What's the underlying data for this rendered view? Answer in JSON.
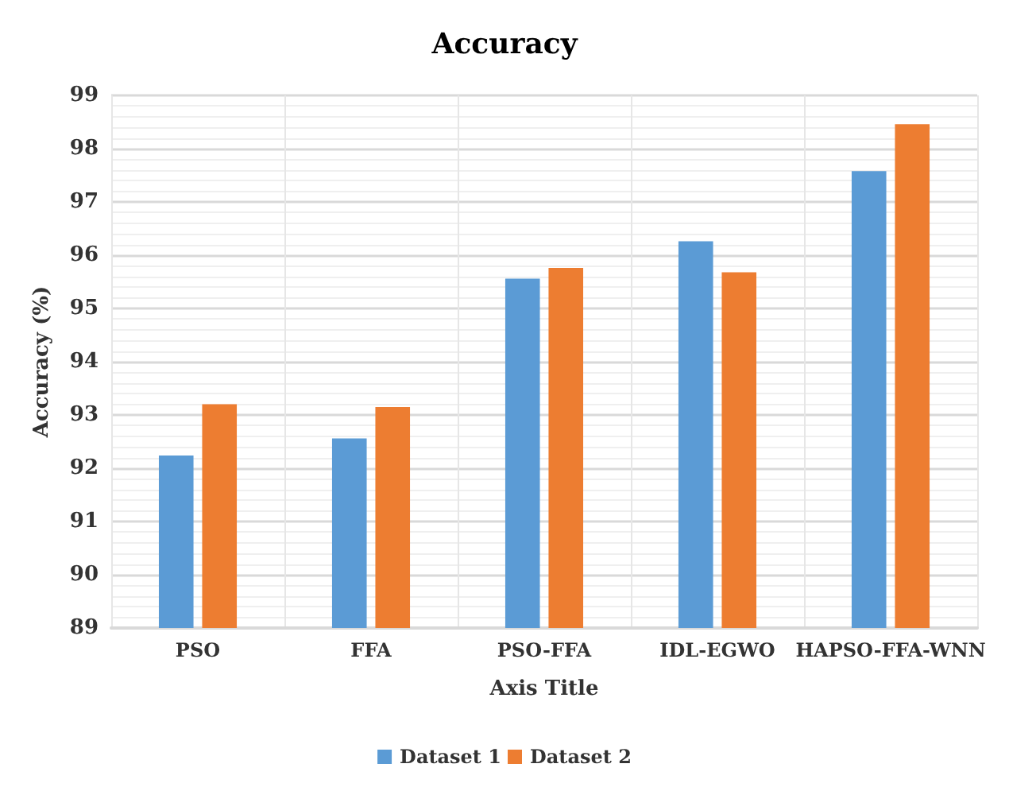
{
  "chart_data": {
    "type": "bar",
    "title": "Accuracy",
    "xlabel": "Axis Title",
    "ylabel": "Accuracy (%)",
    "categories": [
      "PSO",
      "FFA",
      "PSO-FFA",
      "IDL-EGWO",
      "HAPSO-FFA-WNN"
    ],
    "series": [
      {
        "name": "Dataset 1",
        "color": "#5b9bd5",
        "values": [
          92.24,
          92.56,
          95.56,
          96.26,
          97.58
        ]
      },
      {
        "name": "Dataset 2",
        "color": "#ed7d31",
        "values": [
          93.2,
          93.15,
          95.76,
          95.68,
          98.46
        ]
      }
    ],
    "ylim": [
      89,
      99
    ],
    "yticks": [
      89,
      90,
      91,
      92,
      93,
      94,
      95,
      96,
      97,
      98,
      99
    ],
    "grid": true,
    "legend": "bottom"
  }
}
